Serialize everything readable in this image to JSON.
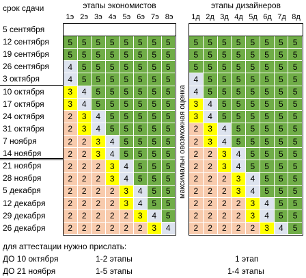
{
  "header": {
    "due_label": "срок сдачи",
    "econ_label": "этапы экономистов",
    "design_label": "этапы дизайнеров",
    "max_label": "максимальн овозможная оценка"
  },
  "econ_cols": [
    "1э",
    "2э",
    "3э",
    "4э",
    "5э",
    "6э",
    "7э",
    "8э"
  ],
  "design_cols": [
    "1д",
    "2д",
    "3д",
    "4д",
    "5д",
    "6д",
    "7д",
    "8д"
  ],
  "colors": {
    "5": "#70ad47",
    "4": "#dde3ee",
    "3": "#ffff00",
    "2": "#f8cbad",
    "empty": "#ffffff"
  },
  "rows": [
    {
      "date": "5 сентября",
      "econ": [
        "",
        "",
        "",
        "",
        "",
        "",
        "",
        ""
      ],
      "design": [
        "",
        "",
        "",
        "",
        "",
        "",
        "",
        ""
      ]
    },
    {
      "date": "12 сентября",
      "econ": [
        "5",
        "5",
        "5",
        "5",
        "5",
        "5",
        "5",
        "5"
      ],
      "design": [
        "5",
        "5",
        "5",
        "5",
        "5",
        "5",
        "5",
        "5"
      ]
    },
    {
      "date": "19 сентября",
      "econ": [
        "5",
        "5",
        "5",
        "5",
        "5",
        "5",
        "5",
        "5"
      ],
      "design": [
        "5",
        "5",
        "5",
        "5",
        "5",
        "5",
        "5",
        "5"
      ]
    },
    {
      "date": "26 сентября",
      "econ": [
        "4",
        "5",
        "5",
        "5",
        "5",
        "5",
        "5",
        "5"
      ],
      "design": [
        "5",
        "5",
        "5",
        "5",
        "5",
        "5",
        "5",
        "5"
      ]
    },
    {
      "date": "3 октября",
      "econ": [
        "4",
        "5",
        "5",
        "5",
        "5",
        "5",
        "5",
        "5"
      ],
      "design": [
        "4",
        "5",
        "5",
        "5",
        "5",
        "5",
        "5",
        "5"
      ]
    },
    {
      "date": "10 октября",
      "econ": [
        "3",
        "4",
        "5",
        "5",
        "5",
        "5",
        "5",
        "5"
      ],
      "design": [
        "4",
        "5",
        "5",
        "5",
        "5",
        "5",
        "5",
        "5"
      ]
    },
    {
      "date": "17 октября",
      "econ": [
        "3",
        "4",
        "5",
        "5",
        "5",
        "5",
        "5",
        "5"
      ],
      "design": [
        "3",
        "4",
        "5",
        "5",
        "5",
        "5",
        "5",
        "5"
      ]
    },
    {
      "date": "24 октября",
      "econ": [
        "2",
        "3",
        "4",
        "5",
        "5",
        "5",
        "5",
        "5"
      ],
      "design": [
        "3",
        "4",
        "5",
        "5",
        "5",
        "5",
        "5",
        "5"
      ]
    },
    {
      "date": "31 октября",
      "econ": [
        "2",
        "3",
        "4",
        "5",
        "5",
        "5",
        "5",
        "5"
      ],
      "design": [
        "2",
        "3",
        "4",
        "5",
        "5",
        "5",
        "5",
        "5"
      ]
    },
    {
      "date": "7 ноября",
      "econ": [
        "2",
        "2",
        "3",
        "4",
        "5",
        "5",
        "5",
        "5"
      ],
      "design": [
        "2",
        "3",
        "4",
        "5",
        "5",
        "5",
        "5",
        "5"
      ]
    },
    {
      "date": "14 ноября",
      "econ": [
        "2",
        "2",
        "3",
        "4",
        "5",
        "5",
        "5",
        "5"
      ],
      "design": [
        "2",
        "2",
        "3",
        "4",
        "5",
        "5",
        "5",
        "5"
      ]
    },
    {
      "date": "21 ноября",
      "econ": [
        "2",
        "2",
        "2",
        "3",
        "4",
        "5",
        "5",
        "5"
      ],
      "design": [
        "2",
        "2",
        "3",
        "4",
        "5",
        "5",
        "5",
        "5"
      ]
    },
    {
      "date": "28 ноября",
      "econ": [
        "2",
        "2",
        "2",
        "3",
        "4",
        "5",
        "5",
        "5"
      ],
      "design": [
        "2",
        "2",
        "2",
        "3",
        "4",
        "5",
        "5",
        "5"
      ]
    },
    {
      "date": "5 декабря",
      "econ": [
        "2",
        "2",
        "2",
        "2",
        "3",
        "4",
        "5",
        "5"
      ],
      "design": [
        "2",
        "2",
        "2",
        "3",
        "4",
        "5",
        "5",
        "5"
      ]
    },
    {
      "date": "12 декабря",
      "econ": [
        "2",
        "2",
        "2",
        "2",
        "3",
        "4",
        "5",
        "5"
      ],
      "design": [
        "2",
        "2",
        "2",
        "2",
        "3",
        "4",
        "5",
        "5"
      ]
    },
    {
      "date": "29 декабря",
      "econ": [
        "2",
        "2",
        "2",
        "2",
        "2",
        "3",
        "4",
        "5"
      ],
      "design": [
        "2",
        "2",
        "2",
        "2",
        "3",
        "4",
        "5",
        "5"
      ]
    },
    {
      "date": "26 декабря",
      "econ": [
        "2",
        "2",
        "2",
        "2",
        "2",
        "2",
        "3",
        "4"
      ],
      "design": [
        "2",
        "2",
        "2",
        "2",
        "2",
        "3",
        "4",
        "5"
      ]
    }
  ],
  "footer": {
    "title": "для аттестации нужно прислать:",
    "lines": [
      {
        "deadline": "ДО 10 октября",
        "econ": "1-2 этапы",
        "design": "1 этап"
      },
      {
        "deadline": "ДО 21 ноября",
        "econ": "1-5 этапы",
        "design": "1-4 этапы"
      }
    ]
  }
}
